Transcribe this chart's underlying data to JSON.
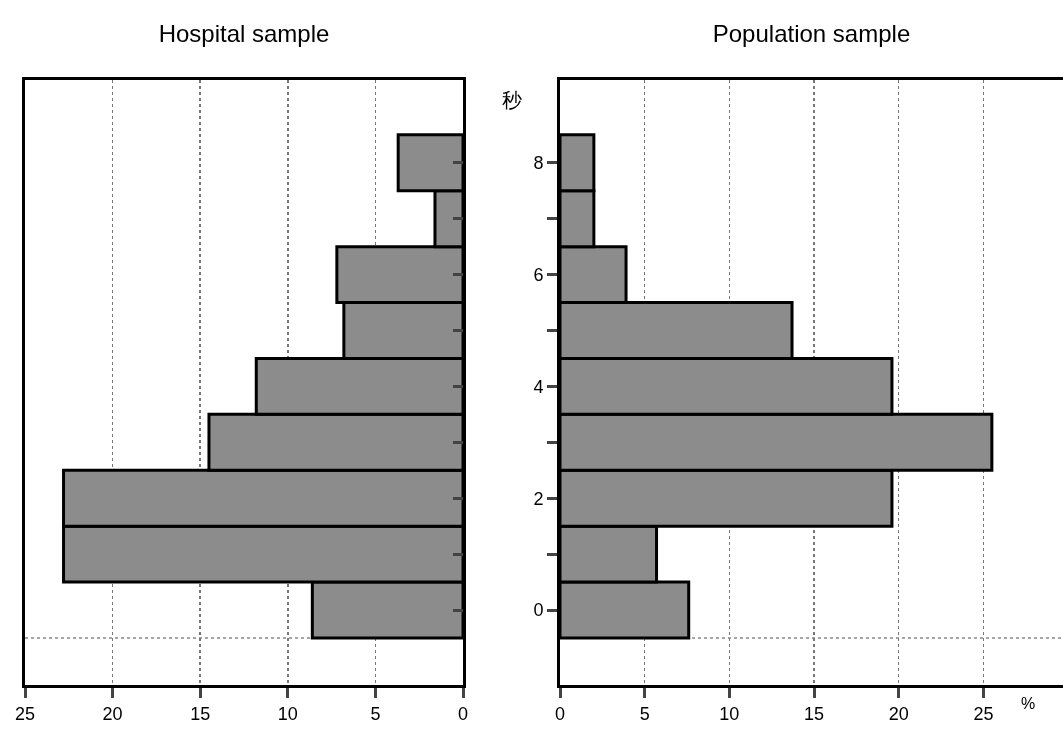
{
  "chart_data": [
    {
      "type": "histogram",
      "title": "Hospital sample",
      "orientation": "horizontal",
      "bins": [
        -0.5,
        0.5,
        1.5,
        2.5,
        3.5,
        4.5,
        5.5,
        6.5,
        7.5,
        8.5
      ],
      "values": [
        8.6,
        22.8,
        22.8,
        14.5,
        11.8,
        6.8,
        7.2,
        1.6,
        3.7
      ],
      "color": "#8c8c8c",
      "xlim": [
        25,
        0
      ],
      "xticks": [
        25,
        20,
        15,
        10,
        5,
        0
      ],
      "ylim": [
        -1.34,
        9.48
      ],
      "yticks": [
        0,
        {
          "value": 1,
          "label": null
        },
        2,
        {
          "value": 3,
          "label": null
        },
        4,
        {
          "value": 5,
          "label": null
        },
        6,
        {
          "value": 7,
          "label": null
        },
        8
      ],
      "grid": "x",
      "tick_labels": "x",
      "ref_lines": [
        {
          "axis": "y",
          "value": -0.5,
          "label": null,
          "line_style": "dotted",
          "color": "#888888"
        }
      ]
    },
    {
      "type": "histogram",
      "title": "Population sample",
      "ylabel": "秒",
      "xlabel": "%",
      "orientation": "horizontal",
      "bins": [
        -0.5,
        0.5,
        1.5,
        2.5,
        3.5,
        4.5,
        5.5,
        6.5,
        7.5,
        8.5
      ],
      "values": [
        7.6,
        5.7,
        19.6,
        25.5,
        19.6,
        13.7,
        3.9,
        2,
        2
      ],
      "color": "#8c8c8c",
      "xlim": [
        0,
        29.7
      ],
      "xticks": [
        0,
        5,
        10,
        15,
        20,
        25
      ],
      "ylim": [
        -1.34,
        9.48
      ],
      "yticks": [
        0,
        {
          "value": 1,
          "label": null
        },
        2,
        {
          "value": 3,
          "label": null
        },
        4,
        {
          "value": 5,
          "label": null
        },
        6,
        {
          "value": 7,
          "label": null
        },
        8
      ],
      "grid": "x",
      "ref_lines": [
        {
          "axis": "y",
          "value": -0.5,
          "label": null,
          "line_style": "dotted",
          "color": "#888888"
        }
      ]
    }
  ]
}
